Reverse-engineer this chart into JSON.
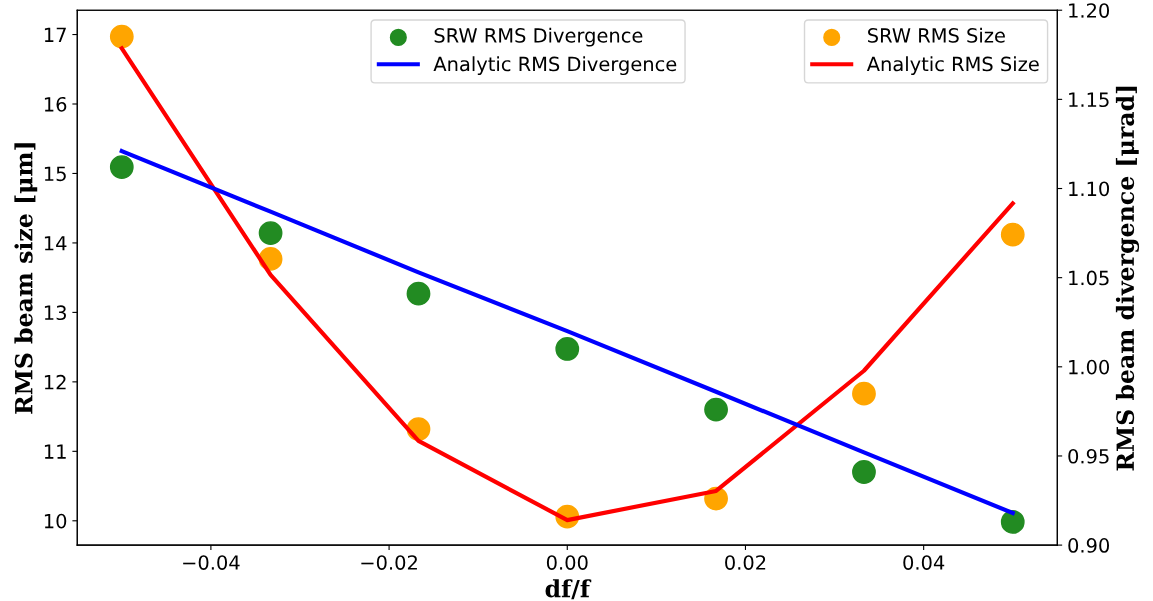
{
  "chart_data": {
    "type": "scatter",
    "xlabel": "df/f",
    "ylabel": "RMS beam size [μm]",
    "y2label": "RMS beam divergence [μrad]",
    "xlim": [
      -0.055,
      0.055
    ],
    "xticks": [
      {
        "value": -0.04,
        "label": "−0.04"
      },
      {
        "value": -0.02,
        "label": "−0.02"
      },
      {
        "value": 0.0,
        "label": "0.00"
      },
      {
        "value": 0.02,
        "label": "0.02"
      },
      {
        "value": 0.04,
        "label": "0.04"
      }
    ],
    "ylim": [
      9.65,
      17.35
    ],
    "yticks": [
      10,
      11,
      12,
      13,
      14,
      15,
      16,
      17
    ],
    "y2lim": [
      0.9,
      1.2
    ],
    "y2ticks": [
      {
        "value": 0.9,
        "label": "0.90"
      },
      {
        "value": 0.95,
        "label": "0.95"
      },
      {
        "value": 1.0,
        "label": "1.00"
      },
      {
        "value": 1.05,
        "label": "1.05"
      },
      {
        "value": 1.1,
        "label": "1.10"
      },
      {
        "value": 1.15,
        "label": "1.15"
      },
      {
        "value": 1.2,
        "label": "1.20"
      }
    ],
    "x": [
      -0.05,
      -0.0333,
      -0.0167,
      0.0,
      0.0167,
      0.0333,
      0.05
    ],
    "series": [
      {
        "name": "SRW RMS Divergence",
        "axis": "y2",
        "color": "#228b22",
        "values": [
          1.112,
          1.075,
          1.041,
          1.01,
          0.976,
          0.941,
          0.913
        ]
      },
      {
        "name": "Analytic RMS Divergence",
        "type": "line",
        "axis": "y2",
        "color": "#0000ff",
        "values": [
          1.121,
          1.087,
          1.053,
          1.02,
          0.986,
          0.952,
          0.918
        ]
      },
      {
        "name": "SRW RMS Size",
        "color": "#ffa500",
        "values": [
          16.97,
          13.77,
          11.32,
          10.06,
          10.32,
          11.83,
          14.12
        ]
      },
      {
        "name": "Analytic RMS Size",
        "type": "line",
        "color": "#ff0000",
        "values": [
          16.8,
          13.54,
          11.15,
          10.01,
          10.43,
          12.16,
          14.57
        ]
      }
    ],
    "legend": "top right",
    "line_style": "solid",
    "grid": false
  }
}
